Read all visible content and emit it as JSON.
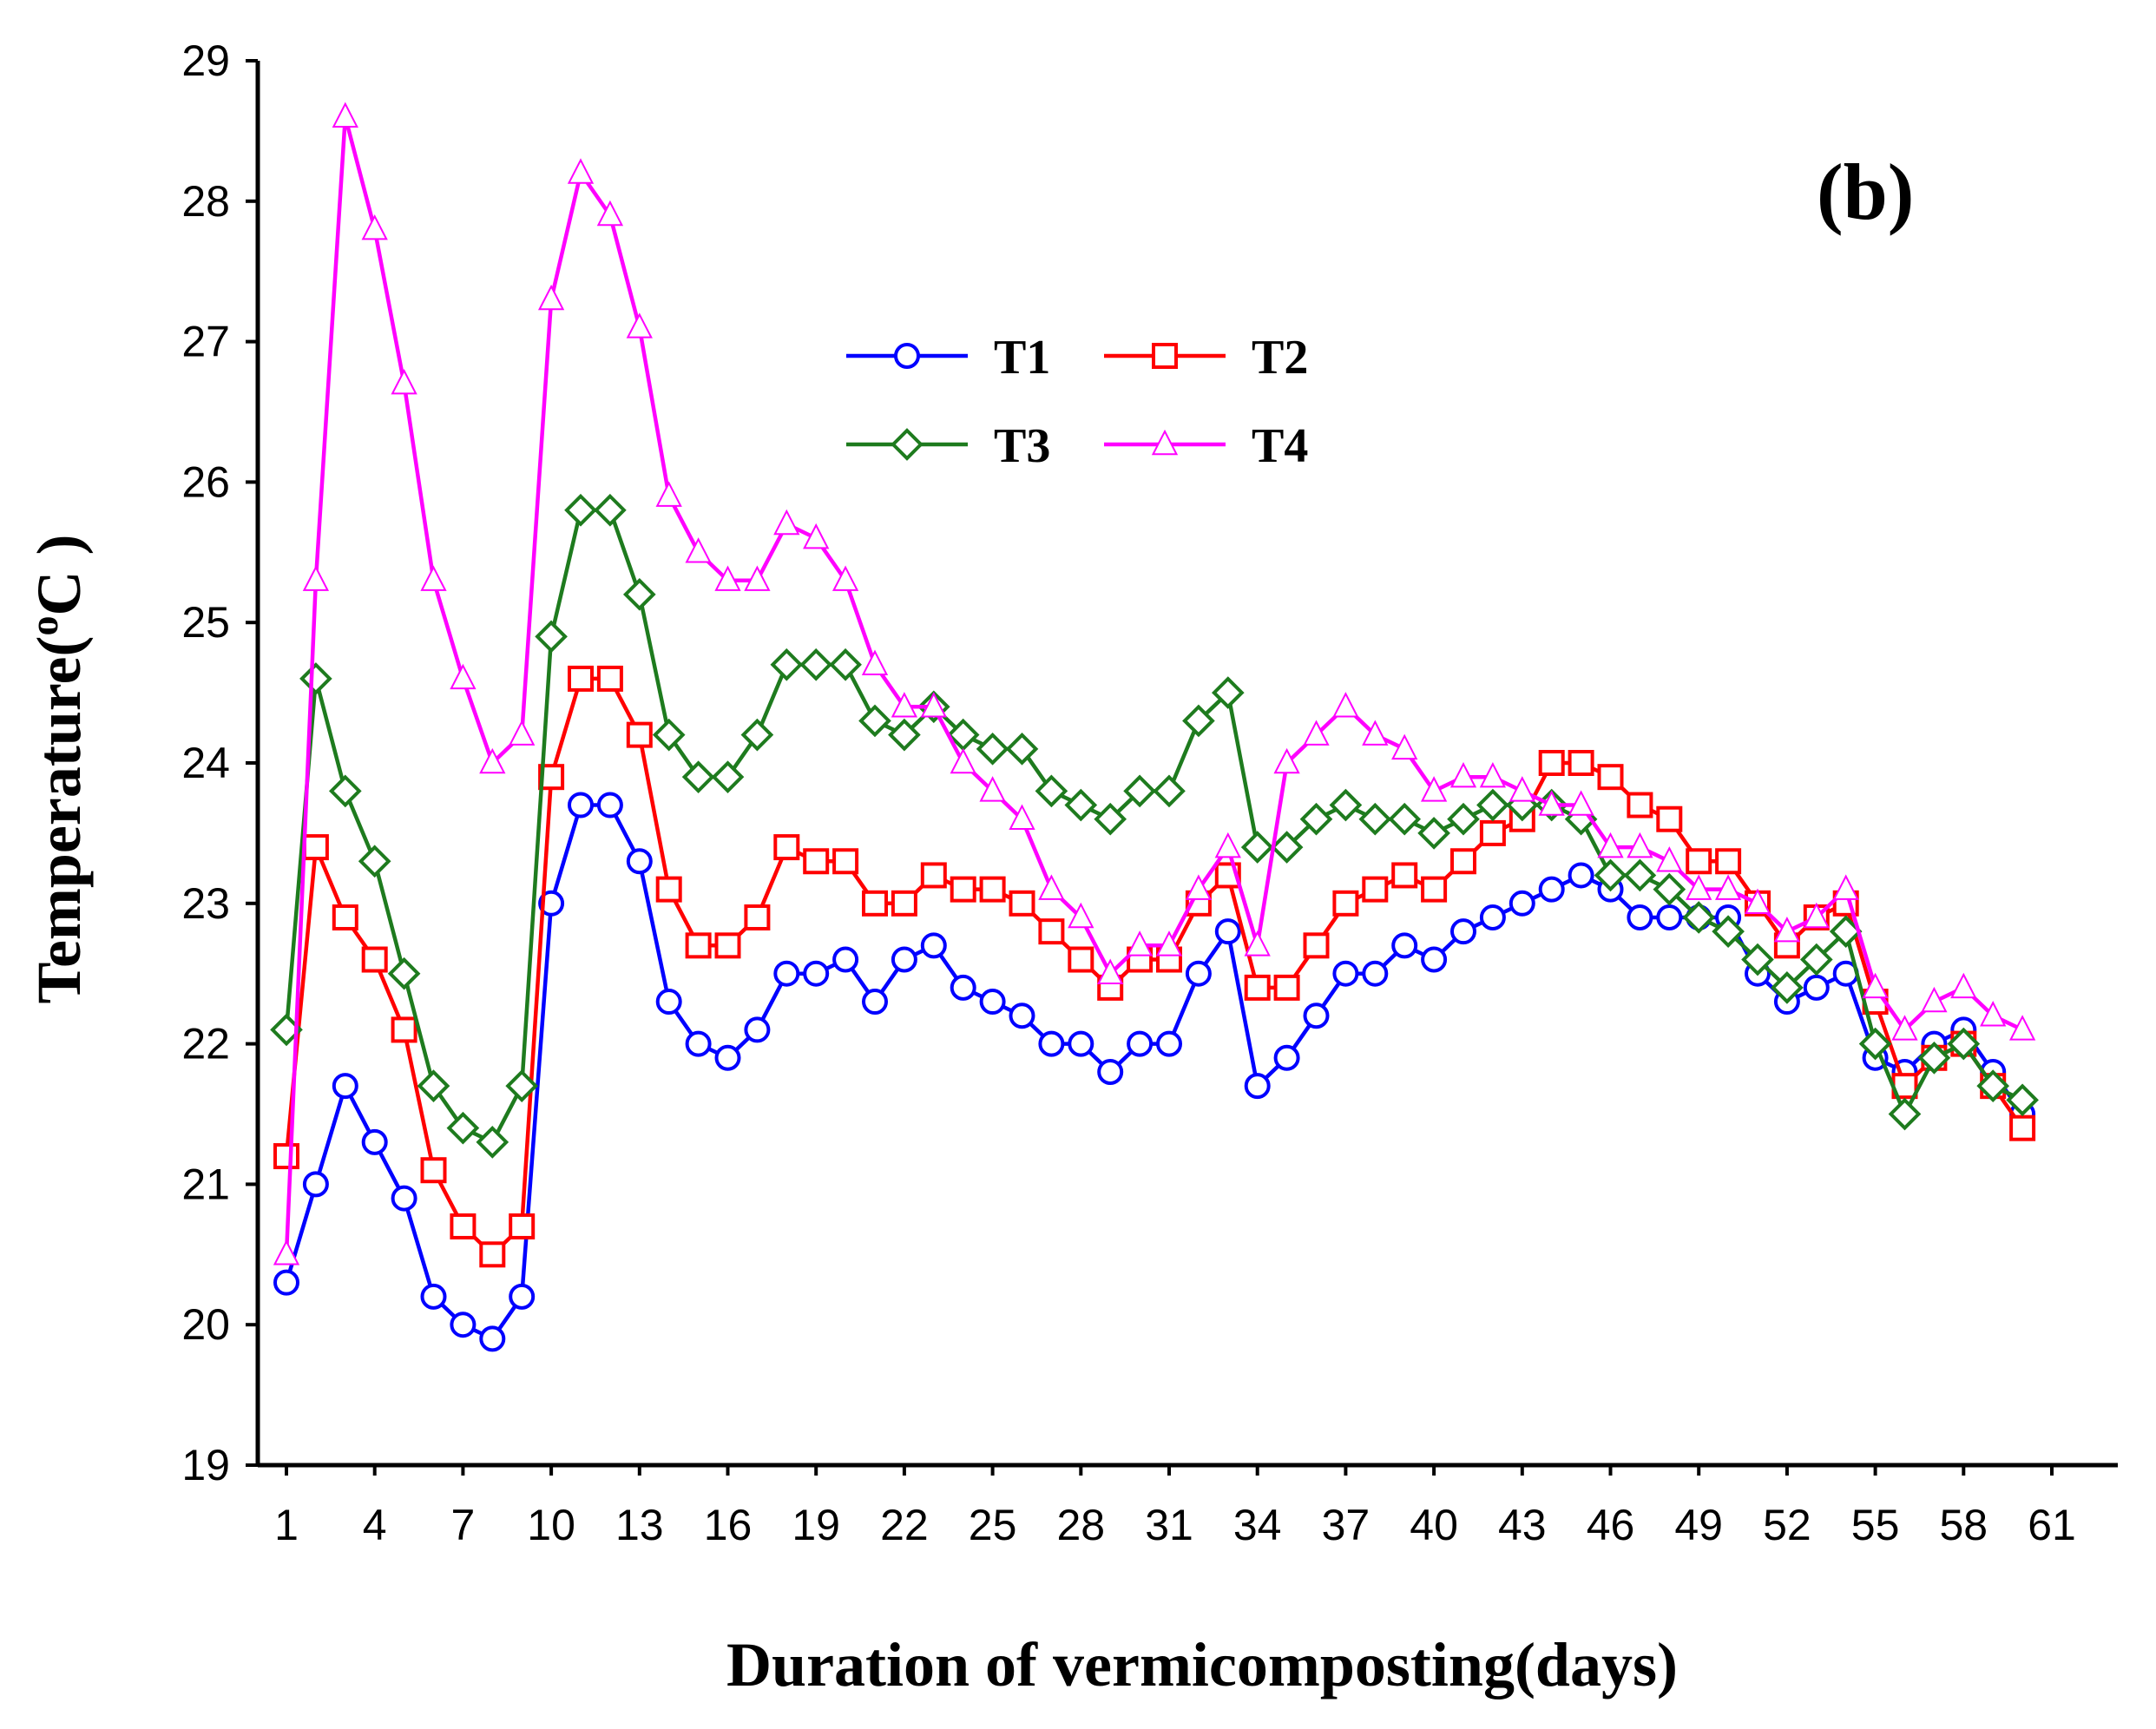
{
  "chart_data": {
    "type": "line",
    "panel_label": "(b)",
    "xlabel": "Duration of vermicomposting(days)",
    "ylabel_prefix": "Temperature(",
    "ylabel_sup": "o",
    "ylabel_suffix": "C )",
    "ylim": [
      19,
      29
    ],
    "yticks": [
      "19",
      "20",
      "21",
      "22",
      "23",
      "24",
      "25",
      "26",
      "27",
      "28",
      "29"
    ],
    "xlim": [
      1,
      61
    ],
    "xticks": [
      "1",
      "4",
      "7",
      "10",
      "13",
      "16",
      "19",
      "22",
      "25",
      "28",
      "31",
      "34",
      "37",
      "40",
      "43",
      "46",
      "49",
      "52",
      "55",
      "58",
      "61"
    ],
    "grid": false,
    "legend_position": "top-center",
    "series": [
      {
        "name": "T1",
        "color": "#0000ff",
        "marker": "circle",
        "values": [
          20.3,
          21.0,
          21.7,
          21.3,
          20.9,
          20.2,
          20.0,
          19.9,
          20.2,
          23.0,
          23.7,
          23.7,
          23.3,
          22.3,
          22.0,
          21.9,
          22.1,
          22.5,
          22.5,
          22.6,
          22.3,
          22.6,
          22.7,
          22.4,
          22.3,
          22.2,
          22.0,
          22.0,
          21.8,
          22.0,
          22.0,
          22.5,
          22.8,
          21.7,
          21.9,
          22.2,
          22.5,
          22.5,
          22.7,
          22.6,
          22.8,
          22.9,
          23.0,
          23.1,
          23.2,
          23.1,
          22.9,
          22.9,
          22.9,
          22.9,
          22.5,
          22.3,
          22.4,
          22.5,
          21.9,
          21.8,
          22.0,
          22.1,
          21.8,
          21.5
        ]
      },
      {
        "name": "T2",
        "color": "#ff0000",
        "marker": "square",
        "values": [
          21.2,
          23.4,
          22.9,
          22.6,
          22.1,
          21.1,
          20.7,
          20.5,
          20.7,
          23.9,
          24.6,
          24.6,
          24.2,
          23.1,
          22.7,
          22.7,
          22.9,
          23.4,
          23.3,
          23.3,
          23.0,
          23.0,
          23.2,
          23.1,
          23.1,
          23.0,
          22.8,
          22.6,
          22.4,
          22.6,
          22.6,
          23.0,
          23.2,
          22.4,
          22.4,
          22.7,
          23.0,
          23.1,
          23.2,
          23.1,
          23.3,
          23.5,
          23.6,
          24.0,
          24.0,
          23.9,
          23.7,
          23.6,
          23.3,
          23.3,
          23.0,
          22.7,
          22.9,
          23.0,
          22.3,
          21.7,
          21.9,
          22.0,
          21.7,
          21.4
        ]
      },
      {
        "name": "T3",
        "color": "#1e7b1e",
        "marker": "diamond",
        "values": [
          22.1,
          24.6,
          23.8,
          23.3,
          22.5,
          21.7,
          21.4,
          21.3,
          21.7,
          24.9,
          25.8,
          25.8,
          25.2,
          24.2,
          23.9,
          23.9,
          24.2,
          24.7,
          24.7,
          24.7,
          24.3,
          24.2,
          24.4,
          24.2,
          24.1,
          24.1,
          23.8,
          23.7,
          23.6,
          23.8,
          23.8,
          24.3,
          24.5,
          23.4,
          23.4,
          23.6,
          23.7,
          23.6,
          23.6,
          23.5,
          23.6,
          23.7,
          23.7,
          23.7,
          23.6,
          23.2,
          23.2,
          23.1,
          22.9,
          22.8,
          22.6,
          22.4,
          22.6,
          22.8,
          22.0,
          21.5,
          21.9,
          22.0,
          21.7,
          21.6
        ]
      },
      {
        "name": "T4",
        "color": "#ff00ff",
        "marker": "triangle",
        "values": [
          20.5,
          25.3,
          28.6,
          27.8,
          26.7,
          25.3,
          24.6,
          24.0,
          24.2,
          27.3,
          28.2,
          27.9,
          27.1,
          25.9,
          25.5,
          25.3,
          25.3,
          25.7,
          25.6,
          25.3,
          24.7,
          24.4,
          24.4,
          24.0,
          23.8,
          23.6,
          23.1,
          22.9,
          22.5,
          22.7,
          22.7,
          23.1,
          23.4,
          22.7,
          24.0,
          24.2,
          24.4,
          24.2,
          24.1,
          23.8,
          23.9,
          23.9,
          23.8,
          23.7,
          23.7,
          23.4,
          23.4,
          23.3,
          23.1,
          23.1,
          23.0,
          22.8,
          22.9,
          23.1,
          22.4,
          22.1,
          22.3,
          22.4,
          22.2,
          22.1
        ]
      }
    ]
  }
}
